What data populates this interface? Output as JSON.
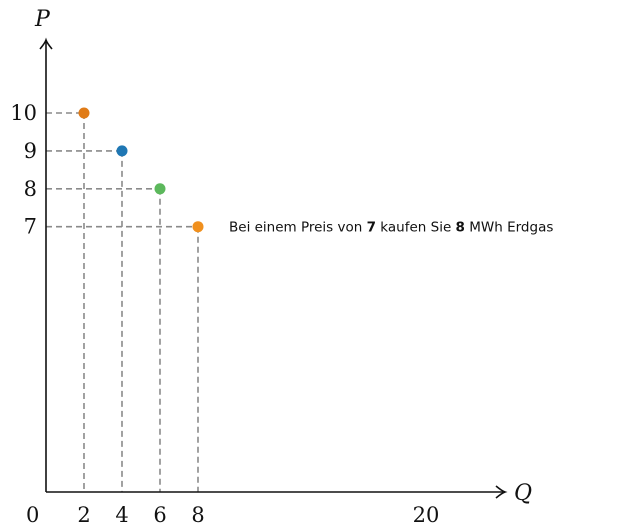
{
  "chart_data": {
    "type": "scatter",
    "xlabel": "Q",
    "ylabel": "P",
    "origin_label": "0",
    "xlim": [
      0,
      24
    ],
    "ylim": [
      0,
      12.8
    ],
    "x_ticks": [
      {
        "value": 2,
        "label": "2"
      },
      {
        "value": 4,
        "label": "4"
      },
      {
        "value": 6,
        "label": "6"
      },
      {
        "value": 8,
        "label": "8"
      },
      {
        "value": 20,
        "label": "20"
      }
    ],
    "y_ticks": [
      {
        "value": 7,
        "label": "7"
      },
      {
        "value": 8,
        "label": "8"
      },
      {
        "value": 9,
        "label": "9"
      },
      {
        "value": 10,
        "label": "10"
      }
    ],
    "points": [
      {
        "x": 2,
        "y": 10,
        "color": "#e07b17"
      },
      {
        "x": 4,
        "y": 9,
        "color": "#1f77b4"
      },
      {
        "x": 6,
        "y": 8,
        "color": "#5cb85c"
      },
      {
        "x": 8,
        "y": 7,
        "color": "#f0901e"
      }
    ],
    "grid": false,
    "dashed_guides": true,
    "annotation": {
      "anchor": {
        "x": 8,
        "y": 7
      },
      "parts": [
        {
          "text": "Bei einem Preis von ",
          "bold": false
        },
        {
          "text": "7",
          "bold": true
        },
        {
          "text": " kaufen Sie ",
          "bold": false
        },
        {
          "text": "8",
          "bold": true
        },
        {
          "text": " MWh Erdgas",
          "bold": false
        }
      ]
    }
  }
}
